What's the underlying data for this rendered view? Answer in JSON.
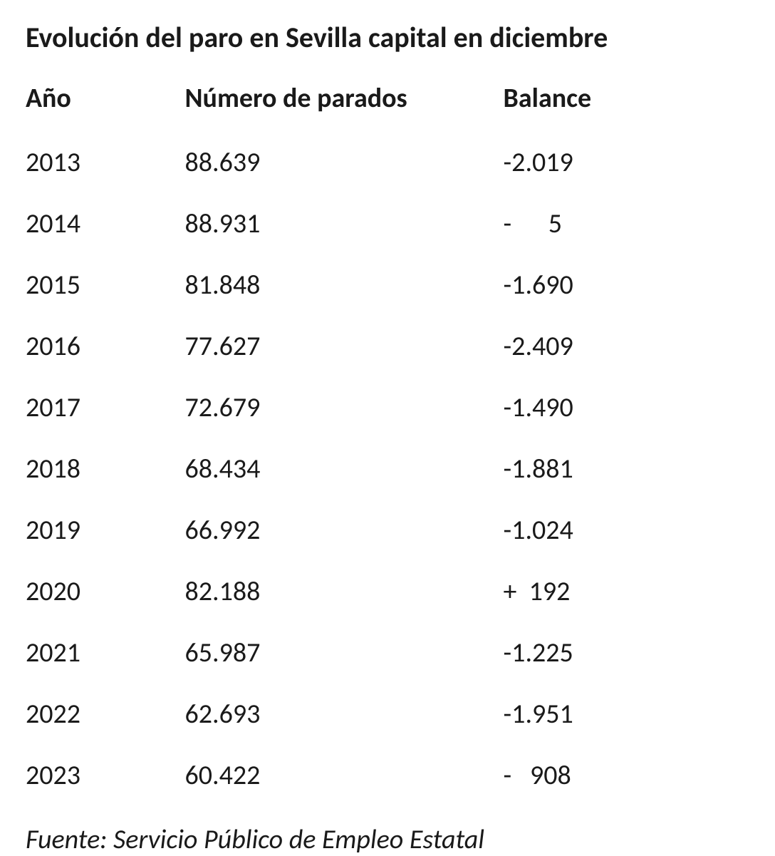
{
  "title": "Evolución del paro en Sevilla capital en diciembre",
  "table": {
    "type": "table",
    "background_color": "#ffffff",
    "text_color": "#1a1a1a",
    "font_family": "Calibri",
    "header_fontsize": 38,
    "header_fontweight": 700,
    "cell_fontsize": 38,
    "cell_fontweight": 400,
    "columns": [
      {
        "key": "year",
        "label": "Año",
        "width_pct": 22,
        "align": "left"
      },
      {
        "key": "parados",
        "label": "Número de parados",
        "width_pct": 44,
        "align": "left"
      },
      {
        "key": "balance",
        "label": "Balance",
        "width_pct": 34,
        "align": "left"
      }
    ],
    "rows": [
      {
        "year": "2013",
        "parados": "88.639",
        "balance": "-2.019"
      },
      {
        "year": "2014",
        "parados": "88.931",
        "balance": "-      5"
      },
      {
        "year": "2015",
        "parados": "81.848",
        "balance": "-1.690"
      },
      {
        "year": "2016",
        "parados": "77.627",
        "balance": "-2.409"
      },
      {
        "year": "2017",
        "parados": "72.679",
        "balance": "-1.490"
      },
      {
        "year": "2018",
        "parados": "68.434",
        "balance": "-1.881"
      },
      {
        "year": "2019",
        "parados": "66.992",
        "balance": "-1.024"
      },
      {
        "year": "2020",
        "parados": "82.188",
        "balance": "+  192"
      },
      {
        "year": "2021",
        "parados": "65.987",
        "balance": "-1.225"
      },
      {
        "year": "2022",
        "parados": "62.693",
        "balance": "-1.951"
      },
      {
        "year": "2023",
        "parados": "60.422",
        "balance": "-   908"
      }
    ]
  },
  "source": "Fuente: Servicio Público de Empleo Estatal"
}
